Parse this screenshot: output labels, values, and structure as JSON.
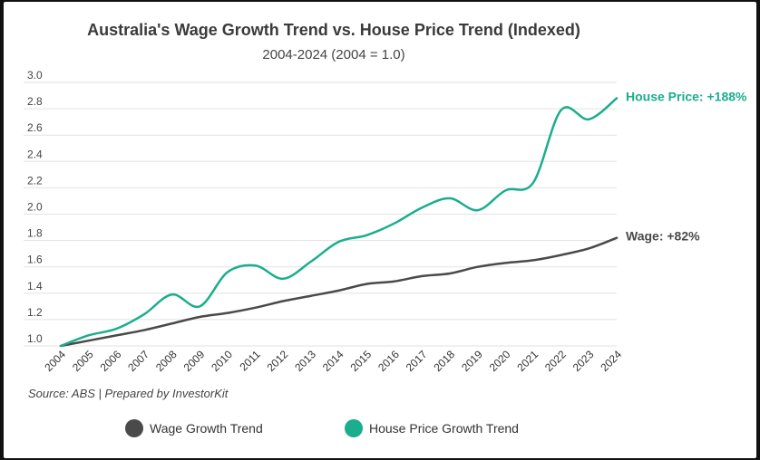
{
  "chart_data": {
    "type": "line",
    "title": "Australia's Wage Growth Trend vs. House Price Trend (Indexed)",
    "subtitle": "2004-2024 (2004 = 1.0)",
    "x": [
      "2004",
      "2005",
      "2006",
      "2007",
      "2008",
      "2009",
      "2010",
      "2011",
      "2012",
      "2013",
      "2014",
      "2015",
      "2016",
      "2017",
      "2018",
      "2019",
      "2020",
      "2021",
      "2022",
      "2023",
      "2024"
    ],
    "yticks": [
      "1.0",
      "1.2",
      "1.4",
      "1.6",
      "1.8",
      "2.0",
      "2.2",
      "2.4",
      "2.6",
      "2.8",
      "3.0"
    ],
    "ylim": [
      1.0,
      3.0
    ],
    "grid": true,
    "series": [
      {
        "name": "Wage Growth Trend",
        "color": "#4a4a4a",
        "end_label": "Wage: +82%",
        "values": [
          1.0,
          1.04,
          1.08,
          1.12,
          1.17,
          1.22,
          1.25,
          1.29,
          1.34,
          1.38,
          1.42,
          1.47,
          1.49,
          1.53,
          1.55,
          1.6,
          1.63,
          1.65,
          1.69,
          1.74,
          1.82
        ]
      },
      {
        "name": "House Price Growth Trend",
        "color": "#1aae8c",
        "end_label": "House Price: +188%",
        "values": [
          1.0,
          1.08,
          1.13,
          1.24,
          1.39,
          1.3,
          1.56,
          1.61,
          1.51,
          1.64,
          1.79,
          1.84,
          1.93,
          2.05,
          2.12,
          2.03,
          2.18,
          2.24,
          2.79,
          2.72,
          2.88
        ]
      }
    ],
    "legend_position": "bottom",
    "source": "Source: ABS | Prepared by InvestorKit"
  }
}
